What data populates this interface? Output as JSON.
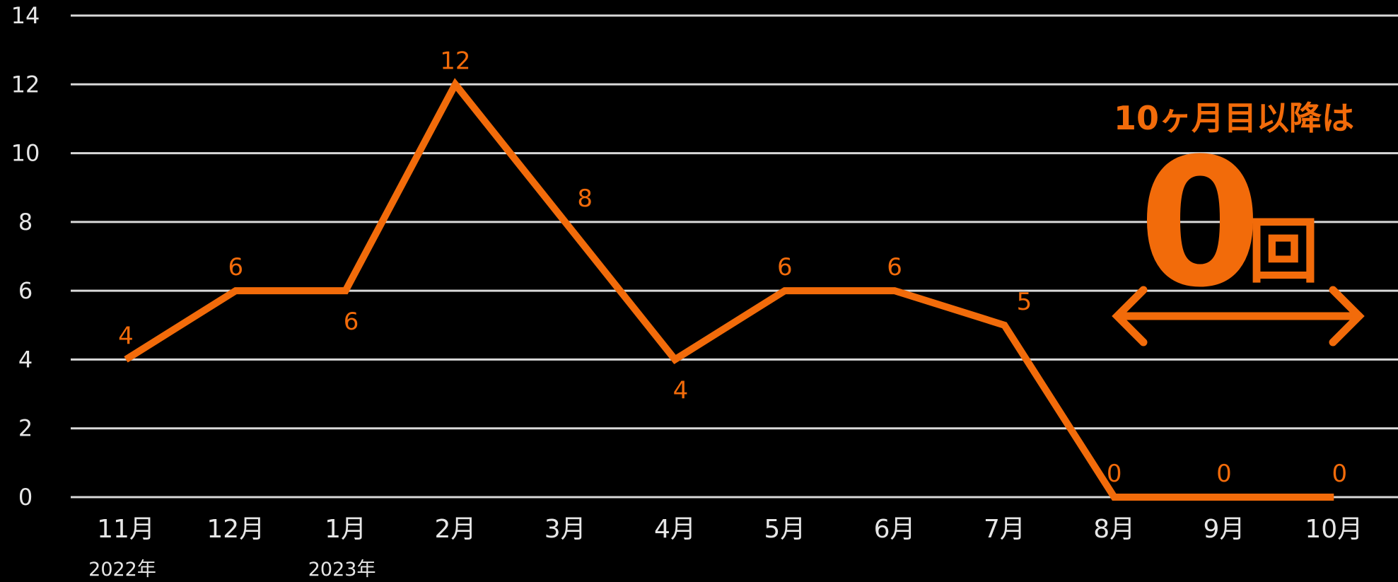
{
  "chart_data": {
    "type": "line",
    "categories": [
      "11月",
      "12月",
      "1月",
      "2月",
      "3月",
      "4月",
      "5月",
      "6月",
      "7月",
      "8月",
      "9月",
      "10月"
    ],
    "year_labels": [
      {
        "category": "11月",
        "text": "2022年"
      },
      {
        "category": "1月",
        "text": "2023年"
      }
    ],
    "series": [
      {
        "values": [
          4,
          6,
          6,
          12,
          8,
          4,
          6,
          6,
          5,
          0,
          0,
          0
        ],
        "color": "#f26b0a"
      }
    ],
    "ylim": [
      0,
      14
    ],
    "yticks": [
      0,
      2,
      4,
      6,
      8,
      10,
      12,
      14
    ],
    "grid": true,
    "title": "",
    "xlabel": "",
    "ylabel": "",
    "annotation": {
      "line1": "10ヶ月目以降は",
      "big_number": "0",
      "unit": "回",
      "from_category": "8月",
      "to_category": "10月"
    }
  }
}
